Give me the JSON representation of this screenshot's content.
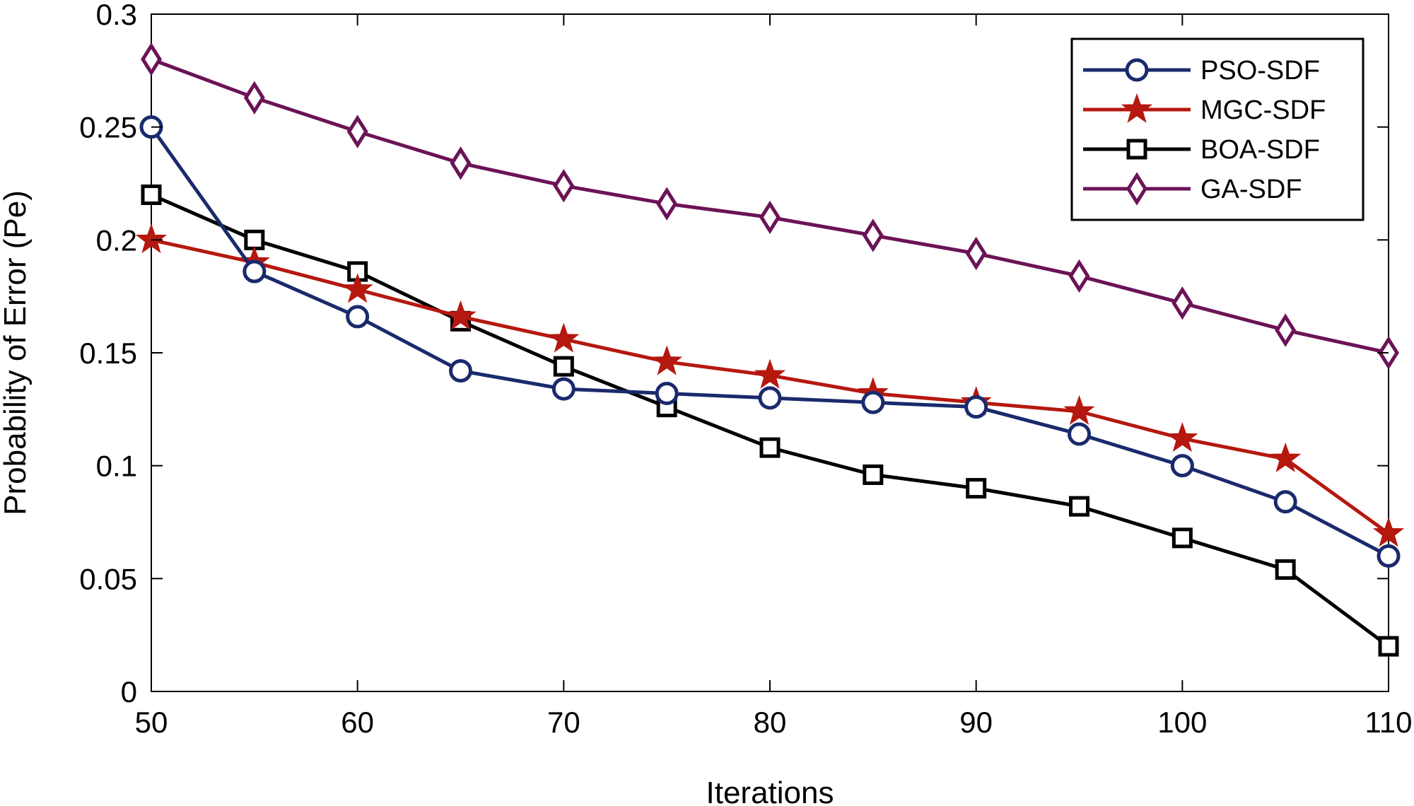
{
  "chart_data": {
    "type": "line",
    "title": "",
    "xlabel": "Iterations",
    "ylabel": "Probability of Error (Pe)",
    "xlim": [
      50,
      110
    ],
    "ylim": [
      0,
      0.3
    ],
    "x": [
      50,
      55,
      60,
      65,
      70,
      75,
      80,
      85,
      90,
      95,
      100,
      105,
      110
    ],
    "xticks": [
      50,
      60,
      70,
      80,
      90,
      100,
      110
    ],
    "xtick_labels": [
      "50",
      "60",
      "70",
      "80",
      "90",
      "100",
      "110"
    ],
    "yticks": [
      0,
      0.05,
      0.1,
      0.15,
      0.2,
      0.25,
      0.3
    ],
    "ytick_labels": [
      "0",
      "0.05",
      "0.1",
      "0.15",
      "0.2",
      "0.25",
      "0.3"
    ],
    "grid": false,
    "legend_position": "top-right",
    "series": [
      {
        "name": "PSO-SDF",
        "color": "#1a2a6c",
        "marker": "circle",
        "values": [
          0.25,
          0.186,
          0.166,
          0.142,
          0.134,
          0.132,
          0.13,
          0.128,
          0.126,
          0.114,
          0.1,
          0.084,
          0.06
        ]
      },
      {
        "name": "MGC-SDF",
        "color": "#b5180f",
        "marker": "star",
        "values": [
          0.2,
          0.19,
          0.178,
          0.166,
          0.156,
          0.146,
          0.14,
          0.132,
          0.128,
          0.124,
          0.112,
          0.103,
          0.07
        ]
      },
      {
        "name": "BOA-SDF",
        "color": "#000000",
        "marker": "square",
        "values": [
          0.22,
          0.2,
          0.186,
          0.164,
          0.144,
          0.126,
          0.108,
          0.096,
          0.09,
          0.082,
          0.068,
          0.054,
          0.02
        ]
      },
      {
        "name": "GA-SDF",
        "color": "#6b1356",
        "marker": "diamond",
        "values": [
          0.28,
          0.263,
          0.248,
          0.234,
          0.224,
          0.216,
          0.21,
          0.202,
          0.194,
          0.184,
          0.172,
          0.16,
          0.15
        ]
      }
    ]
  }
}
